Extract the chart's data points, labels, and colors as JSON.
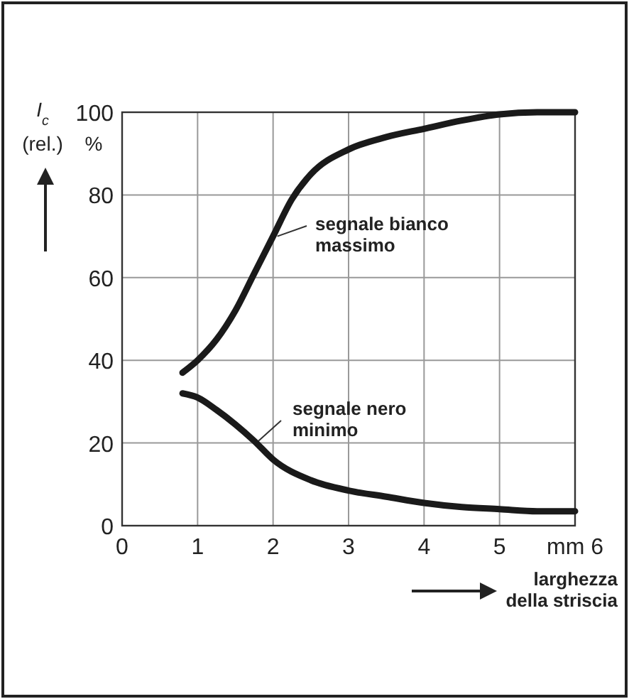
{
  "chart_data": {
    "type": "line",
    "ylabel": "I$_{c}$ (rel.)",
    "xlabel": "larghezza della striscia",
    "annotations": [
      "%"
    ],
    "xlim": [
      0,
      6
    ],
    "ylim": [
      0,
      100
    ],
    "xticks": [
      0,
      1,
      2,
      3,
      4,
      5,
      {
        "value": 6,
        "label": "mm 6"
      }
    ],
    "yticks": [
      0,
      20,
      40,
      60,
      80,
      100
    ],
    "grid": true,
    "line_style": "solid",
    "series": [
      {
        "name": "segnale bianco massimo",
        "color": "#1a1a1a",
        "x": [
          0.8,
          1,
          1.25,
          1.5,
          1.75,
          2,
          2.25,
          2.5,
          3,
          3.5,
          4,
          4.5,
          5,
          5.5,
          6
        ],
        "values": [
          37,
          40,
          45,
          52,
          61,
          70,
          79,
          85,
          91,
          94,
          96,
          98,
          99.5,
          100,
          100
        ]
      },
      {
        "name": "segnale nero minimo",
        "color": "#1a1a1a",
        "x": [
          0.8,
          1,
          1.25,
          1.5,
          1.75,
          2,
          2.5,
          3,
          3.5,
          4,
          4.5,
          5,
          5.5,
          6
        ],
        "values": [
          32,
          31,
          28,
          24.5,
          20.5,
          16,
          11,
          8.5,
          7,
          5.5,
          4.5,
          4,
          3.5,
          3.5
        ]
      }
    ]
  }
}
